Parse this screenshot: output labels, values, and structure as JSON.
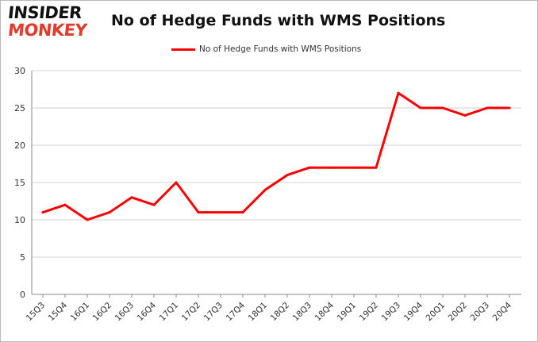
{
  "logo": {
    "line1": "INSIDER",
    "line2": "MONKEY"
  },
  "colors": {
    "series": "#ff0000",
    "logo_accent": "#e23a2b",
    "grid": "#d0d0d0",
    "axis": "#888888"
  },
  "chart_data": {
    "type": "line",
    "title": "No of Hedge Funds with WMS Positions",
    "xlabel": "",
    "ylabel": "",
    "ylim": [
      0,
      30
    ],
    "yticks": [
      0,
      5,
      10,
      15,
      20,
      25,
      30
    ],
    "grid": true,
    "legend_position": "top-center",
    "categories": [
      "15Q3",
      "15Q4",
      "16Q1",
      "16Q2",
      "16Q3",
      "16Q4",
      "17Q1",
      "17Q2",
      "17Q3",
      "17Q4",
      "18Q1",
      "18Q2",
      "18Q3",
      "18Q4",
      "19Q1",
      "19Q2",
      "19Q3",
      "19Q4",
      "20Q1",
      "20Q2",
      "20Q3",
      "20Q4"
    ],
    "series": [
      {
        "name": "No of Hedge Funds with WMS Positions",
        "values": [
          11,
          12,
          10,
          11,
          13,
          12,
          15,
          11,
          11,
          11,
          14,
          16,
          17,
          17,
          17,
          17,
          27,
          25,
          25,
          24,
          25,
          25
        ]
      }
    ]
  }
}
